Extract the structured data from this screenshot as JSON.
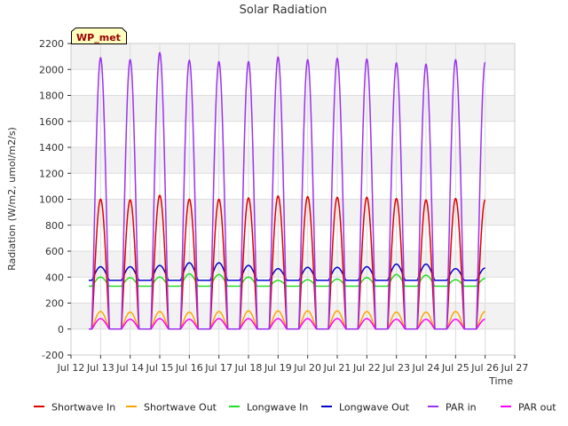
{
  "chart_data": {
    "type": "line",
    "title": "Solar Radiation",
    "xlabel": "Time",
    "ylabel": "Radiation (W/m2, umol/m2/s)",
    "site_label": "WP_met",
    "ylim": [
      -200,
      2200
    ],
    "xlim": [
      12,
      27
    ],
    "yticks": [
      -200,
      0,
      200,
      400,
      600,
      800,
      1000,
      1200,
      1400,
      1600,
      1800,
      2000,
      2200
    ],
    "xtick_values": [
      12,
      13,
      14,
      15,
      16,
      17,
      18,
      19,
      20,
      21,
      22,
      23,
      24,
      25,
      26,
      27
    ],
    "xtick_labels": [
      "Jul 12",
      "Jul 13",
      "Jul 14",
      "Jul 15",
      "Jul 16",
      "Jul 17",
      "Jul 18",
      "Jul 19",
      "Jul 20",
      "Jul 21",
      "Jul 22",
      "Jul 23",
      "Jul 24",
      "Jul 25",
      "Jul 26",
      "Jul 27"
    ],
    "grid": true,
    "legend_position": "bottom",
    "x_data_start": 12.6,
    "x_data_end": 26.0,
    "peak_days": [
      13,
      14,
      15,
      16,
      17,
      18,
      19,
      20,
      21,
      22,
      23,
      24,
      25,
      26
    ],
    "series": [
      {
        "name": "Shortwave In",
        "color": "#e00000",
        "kind": "diurnal",
        "night": 0,
        "peaks": [
          1000,
          995,
          1030,
          1000,
          1000,
          1010,
          1025,
          1020,
          1015,
          1015,
          1005,
          995,
          1005,
          995
        ]
      },
      {
        "name": "Shortwave Out",
        "color": "#ffa500",
        "kind": "diurnal",
        "night": 0,
        "peaks": [
          135,
          130,
          135,
          130,
          135,
          140,
          140,
          140,
          140,
          135,
          130,
          130,
          135,
          135
        ]
      },
      {
        "name": "Longwave In",
        "color": "#22dd22",
        "kind": "diurnal",
        "night": 330,
        "peaks": [
          400,
          395,
          400,
          425,
          420,
          400,
          375,
          380,
          385,
          395,
          420,
          415,
          380,
          390
        ]
      },
      {
        "name": "Longwave Out",
        "color": "#0000cc",
        "kind": "diurnal",
        "night": 375,
        "peaks": [
          480,
          480,
          490,
          510,
          510,
          490,
          465,
          475,
          475,
          480,
          500,
          500,
          465,
          470
        ]
      },
      {
        "name": "PAR in",
        "color": "#9933ee",
        "kind": "diurnal",
        "night": 0,
        "peaks": [
          2090,
          2075,
          2130,
          2070,
          2060,
          2060,
          2095,
          2075,
          2085,
          2080,
          2050,
          2040,
          2075,
          2055
        ]
      },
      {
        "name": "PAR out",
        "color": "#ff00ff",
        "kind": "diurnal",
        "night": 0,
        "peaks": [
          80,
          75,
          80,
          75,
          80,
          80,
          80,
          80,
          80,
          80,
          75,
          75,
          75,
          75
        ]
      }
    ]
  }
}
